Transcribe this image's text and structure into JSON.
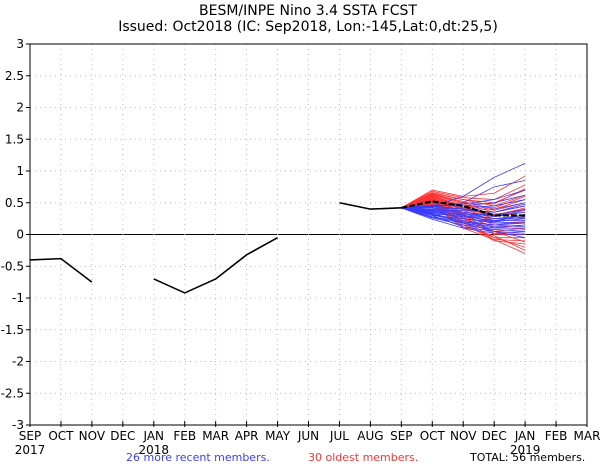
{
  "chart_data": {
    "type": "line",
    "title": "BESM/INPE Nino 3.4 SSTA FCST",
    "subtitle": "Issued: Oct2018 (IC: Sep2018, Lon:-145,Lat:0,dt:25,5)",
    "xlabel": "",
    "ylabel": "",
    "ylim": [
      -3,
      3
    ],
    "yticks": [
      "3",
      "2.5",
      "2",
      "1.5",
      "1",
      "0.5",
      "0",
      "-0.5",
      "-1",
      "-1.5",
      "-2",
      "-2.5",
      "-3"
    ],
    "ytick_values": [
      3,
      2.5,
      2,
      1.5,
      1,
      0.5,
      0,
      -0.5,
      -1,
      -1.5,
      -2,
      -2.5,
      -3
    ],
    "xticks": [
      "SEP",
      "OCT",
      "NOV",
      "DEC",
      "JAN",
      "FEB",
      "MAR",
      "APR",
      "MAY",
      "JUN",
      "JUL",
      "AUG",
      "SEP",
      "OCT",
      "NOV",
      "DEC",
      "JAN",
      "FEB",
      "MAR"
    ],
    "year_labels": [
      {
        "label": "2017",
        "index": 0
      },
      {
        "label": "2018",
        "index": 4
      },
      {
        "label": "2019",
        "index": 16
      }
    ],
    "grid": true,
    "observed": [
      {
        "segment": [
          [
            0,
            -0.4
          ],
          [
            1,
            -0.38
          ],
          [
            2,
            -0.75
          ]
        ]
      },
      {
        "segment": [
          [
            4,
            -0.7
          ],
          [
            5,
            -0.92
          ],
          [
            6,
            -0.7
          ],
          [
            7,
            -0.32
          ],
          [
            8,
            -0.05
          ]
        ]
      },
      {
        "segment": [
          [
            10,
            0.5
          ],
          [
            11,
            0.4
          ],
          [
            12,
            0.42
          ]
        ]
      }
    ],
    "ensemble_mean": [
      [
        12,
        0.42
      ],
      [
        13,
        0.52
      ],
      [
        14,
        0.45
      ],
      [
        15,
        0.3
      ],
      [
        16,
        0.3
      ]
    ],
    "ensemble": {
      "start_index": 12,
      "start_value": 0.42,
      "recent_members": {
        "name": "26 more recent members.",
        "color": "#3b3bff",
        "members": [
          [
            0.42,
            0.45,
            0.6,
            0.9,
            1.12
          ],
          [
            0.42,
            0.43,
            0.5,
            0.75,
            0.85
          ],
          [
            0.42,
            0.44,
            0.48,
            0.55,
            0.7
          ],
          [
            0.42,
            0.46,
            0.45,
            0.5,
            0.62
          ],
          [
            0.42,
            0.4,
            0.42,
            0.45,
            0.55
          ],
          [
            0.42,
            0.45,
            0.4,
            0.4,
            0.5
          ],
          [
            0.42,
            0.38,
            0.38,
            0.35,
            0.45
          ],
          [
            0.42,
            0.4,
            0.35,
            0.3,
            0.4
          ],
          [
            0.42,
            0.35,
            0.32,
            0.3,
            0.35
          ],
          [
            0.42,
            0.37,
            0.3,
            0.25,
            0.3
          ],
          [
            0.42,
            0.33,
            0.28,
            0.22,
            0.28
          ],
          [
            0.42,
            0.36,
            0.25,
            0.2,
            0.25
          ],
          [
            0.42,
            0.3,
            0.25,
            0.18,
            0.2
          ],
          [
            0.42,
            0.32,
            0.22,
            0.15,
            0.18
          ],
          [
            0.42,
            0.28,
            0.2,
            0.12,
            0.15
          ],
          [
            0.42,
            0.34,
            0.18,
            0.1,
            0.1
          ],
          [
            0.42,
            0.26,
            0.15,
            0.08,
            0.05
          ],
          [
            0.42,
            0.3,
            0.12,
            0.05,
            0.02
          ],
          [
            0.42,
            0.24,
            0.1,
            0.02,
            0.0
          ],
          [
            0.42,
            0.38,
            0.3,
            0.2,
            0.32
          ],
          [
            0.42,
            0.42,
            0.35,
            0.28,
            0.38
          ],
          [
            0.42,
            0.35,
            0.28,
            0.22,
            0.22
          ],
          [
            0.42,
            0.31,
            0.2,
            0.15,
            0.12
          ],
          [
            0.42,
            0.27,
            0.18,
            0.05,
            -0.05
          ],
          [
            0.42,
            0.44,
            0.4,
            0.35,
            0.48
          ],
          [
            0.42,
            0.39,
            0.33,
            0.25,
            0.26
          ]
        ]
      },
      "oldest_members": {
        "name": "30 oldest members.",
        "color": "#ff3333",
        "members": [
          [
            0.42,
            0.7,
            0.6,
            0.65,
            0.92
          ],
          [
            0.42,
            0.68,
            0.58,
            0.55,
            0.78
          ],
          [
            0.42,
            0.66,
            0.55,
            0.5,
            0.7
          ],
          [
            0.42,
            0.65,
            0.55,
            0.45,
            0.62
          ],
          [
            0.42,
            0.64,
            0.52,
            0.4,
            0.55
          ],
          [
            0.42,
            0.63,
            0.5,
            0.38,
            0.5
          ],
          [
            0.42,
            0.62,
            0.48,
            0.35,
            0.45
          ],
          [
            0.42,
            0.61,
            0.45,
            0.3,
            0.4
          ],
          [
            0.42,
            0.6,
            0.42,
            0.28,
            0.35
          ],
          [
            0.42,
            0.59,
            0.4,
            0.25,
            0.3
          ],
          [
            0.42,
            0.58,
            0.38,
            0.2,
            0.25
          ],
          [
            0.42,
            0.57,
            0.35,
            0.15,
            0.2
          ],
          [
            0.42,
            0.56,
            0.32,
            0.1,
            0.15
          ],
          [
            0.42,
            0.55,
            0.3,
            0.05,
            0.1
          ],
          [
            0.42,
            0.54,
            0.28,
            0.02,
            0.05
          ],
          [
            0.42,
            0.53,
            0.25,
            0.0,
            0.0
          ],
          [
            0.42,
            0.52,
            0.22,
            -0.05,
            -0.05
          ],
          [
            0.42,
            0.51,
            0.2,
            -0.08,
            -0.1
          ],
          [
            0.42,
            0.5,
            0.18,
            -0.1,
            -0.15
          ],
          [
            0.42,
            0.49,
            0.15,
            -0.05,
            -0.2
          ],
          [
            0.42,
            0.48,
            0.12,
            -0.02,
            -0.25
          ],
          [
            0.42,
            0.47,
            0.1,
            -0.08,
            -0.3
          ],
          [
            0.42,
            0.55,
            0.4,
            0.3,
            0.42
          ],
          [
            0.42,
            0.6,
            0.45,
            0.42,
            0.6
          ],
          [
            0.42,
            0.62,
            0.38,
            0.22,
            0.28
          ],
          [
            0.42,
            0.58,
            0.3,
            0.12,
            0.08
          ],
          [
            0.42,
            0.64,
            0.5,
            0.48,
            0.72
          ],
          [
            0.42,
            0.53,
            0.26,
            0.05,
            -0.12
          ],
          [
            0.42,
            0.56,
            0.34,
            0.18,
            0.18
          ],
          [
            0.42,
            0.61,
            0.42,
            0.32,
            0.38
          ]
        ]
      }
    },
    "legend": {
      "placement": "bottom",
      "recent_label": "26 more recent members.",
      "oldest_label": "30 oldest members.",
      "total_label": "TOTAL: 56 members."
    }
  }
}
